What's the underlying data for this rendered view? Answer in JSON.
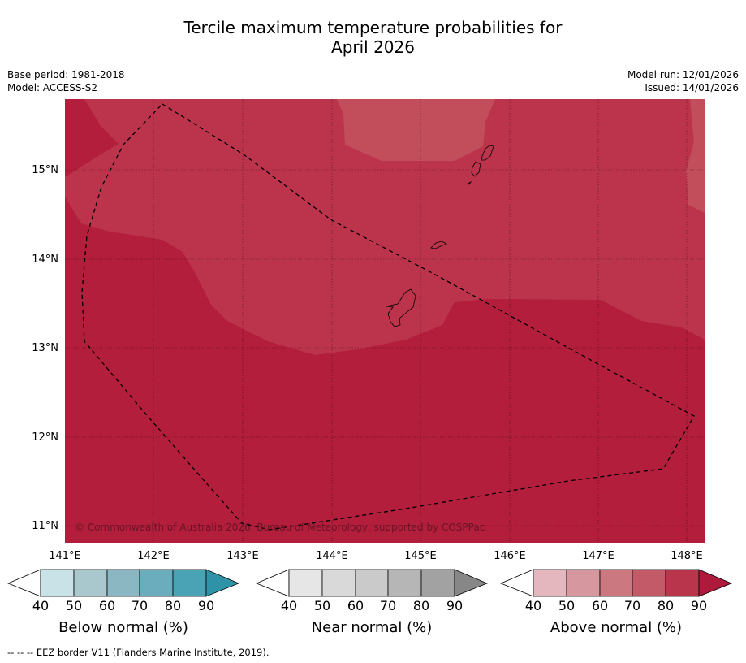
{
  "title": {
    "line1": "Tercile maximum temperature probabilities for",
    "line2": "April 2026"
  },
  "meta": {
    "base_period": "Base period: 1981-2018",
    "model": "Model: ACCESS-S2",
    "model_run": "Model run: 12/01/2026",
    "issued": "Issued: 14/01/2026"
  },
  "map": {
    "lat_labels": [
      "15°N",
      "14°N",
      "13°N",
      "12°N",
      "11°N"
    ],
    "lon_labels": [
      "141°E",
      "142°E",
      "143°E",
      "144°E",
      "145°E",
      "146°E",
      "147°E",
      "148°E"
    ],
    "copyright": "© Commonwealth of Australia 2026, Bureau of Meteorology, supported by COSPPac",
    "colors": {
      "above_90": "#b21e3b",
      "above_80": "#bc344c",
      "above_70": "#c24e5c"
    }
  },
  "colorbars": [
    {
      "title": "Below normal (%)",
      "ticks": [
        "40",
        "50",
        "60",
        "70",
        "80",
        "90"
      ],
      "colors": [
        "#ffffff",
        "#c9e2e8",
        "#a8c8cd",
        "#8ab7c2",
        "#6badbd",
        "#4aa3b4",
        "#2f93a7"
      ]
    },
    {
      "title": "Near normal (%)",
      "ticks": [
        "40",
        "50",
        "60",
        "70",
        "80",
        "90"
      ],
      "colors": [
        "#ffffff",
        "#e6e6e6",
        "#d9d9d9",
        "#cacaca",
        "#b6b6b6",
        "#a2a2a2",
        "#878787"
      ]
    },
    {
      "title": "Above normal (%)",
      "ticks": [
        "40",
        "50",
        "60",
        "70",
        "80",
        "90"
      ],
      "colors": [
        "#ffffff",
        "#e3b7bd",
        "#d6979f",
        "#cc7880",
        "#c25a68",
        "#b8354c",
        "#ad1a3c"
      ]
    }
  ],
  "footer": "--  --  -- EEZ border V11 (Flanders Marine Institute, 2019)."
}
